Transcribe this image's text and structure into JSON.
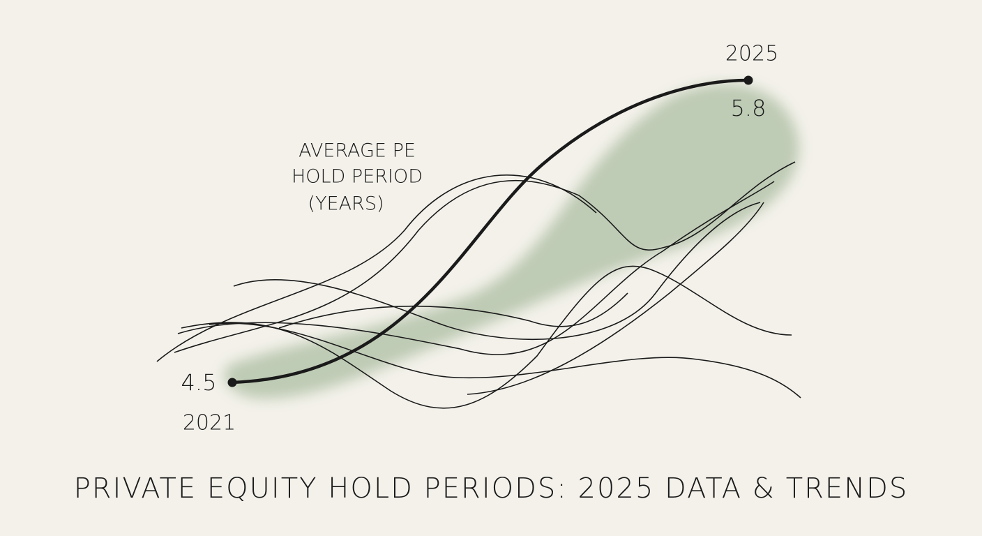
{
  "chart_data": {
    "type": "line",
    "title": "PRIVATE EQUITY HOLD PERIODS: 2025 DATA & TRENDS",
    "ylabel": [
      "AVERAGE PE",
      "HOLD PERIOD",
      "(YEARS)"
    ],
    "x": [
      2021,
      2025
    ],
    "series": [
      {
        "name": "Average PE Hold Period (Years)",
        "color": "#1a1a1a",
        "values": [
          4.5,
          5.8
        ]
      }
    ]
  }
}
